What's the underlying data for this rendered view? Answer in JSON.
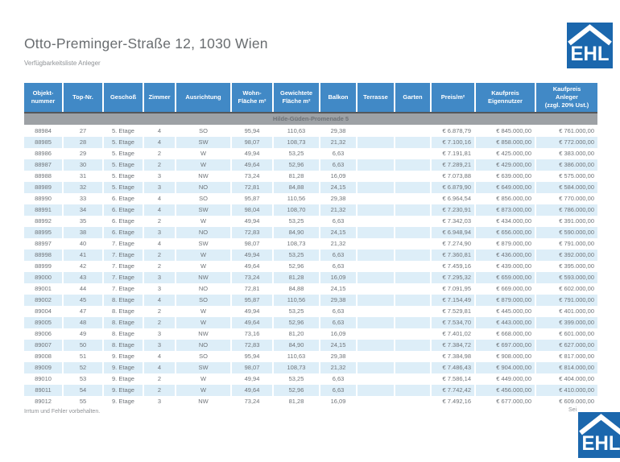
{
  "header": {
    "title": "Otto-Preminger-Straße 12, 1030 Wien",
    "subtitle": "Verfügbarkeitsliste Anleger"
  },
  "logo": {
    "text": "EHL",
    "color": "#1b67ad"
  },
  "colors": {
    "table_header_blue": "#4189c6",
    "row_alt_blue": "#ddeef8",
    "group_row_gray": "#9da1a5",
    "brand_blue": "#1b67ad"
  },
  "table": {
    "columns": [
      "Objekt-\nnummer",
      "Top-Nr.",
      "Geschoß",
      "Zimmer",
      "Ausrichtung",
      "Wohn-\nFläche m²",
      "Gewichtete\nFläche m²",
      "Balkon",
      "Terrasse",
      "Garten",
      "Preis/m²",
      "Kaufpreis\nEigennutzer",
      "Kaufpreis\nAnleger\n(zzgl. 20% Ust.)"
    ],
    "column_keys": [
      "objektnummer",
      "top_nr",
      "geschoss",
      "zimmer",
      "ausrichtung",
      "wohnflaeche",
      "gewichtete_flaeche",
      "balkon",
      "terrasse",
      "garten",
      "preis_m2",
      "kaufpreis_eigennutzer",
      "kaufpreis_anleger"
    ],
    "group_title": "Hilde-Güden-Promenade 5",
    "rows": [
      [
        "88984",
        "27",
        "5. Etage",
        "4",
        "SO",
        "95,94",
        "110,63",
        "29,38",
        "",
        "",
        "€ 6.878,79",
        "€ 845.000,00",
        "€ 761.000,00"
      ],
      [
        "88985",
        "28",
        "5. Etage",
        "4",
        "SW",
        "98,07",
        "108,73",
        "21,32",
        "",
        "",
        "€ 7.100,16",
        "€ 858.000,00",
        "€ 772.000,00"
      ],
      [
        "88986",
        "29",
        "5. Etage",
        "2",
        "W",
        "49,94",
        "53,25",
        "6,63",
        "",
        "",
        "€ 7.191,81",
        "€ 425.000,00",
        "€ 383.000,00"
      ],
      [
        "88987",
        "30",
        "5. Etage",
        "2",
        "W",
        "49,64",
        "52,96",
        "6,63",
        "",
        "",
        "€ 7.289,21",
        "€ 429.000,00",
        "€ 386.000,00"
      ],
      [
        "88988",
        "31",
        "5. Etage",
        "3",
        "NW",
        "73,24",
        "81,28",
        "16,09",
        "",
        "",
        "€ 7.073,88",
        "€ 639.000,00",
        "€ 575.000,00"
      ],
      [
        "88989",
        "32",
        "5. Etage",
        "3",
        "NO",
        "72,81",
        "84,88",
        "24,15",
        "",
        "",
        "€ 6.879,90",
        "€ 649.000,00",
        "€ 584.000,00"
      ],
      [
        "88990",
        "33",
        "6. Etage",
        "4",
        "SO",
        "95,87",
        "110,56",
        "29,38",
        "",
        "",
        "€ 6.964,54",
        "€ 856.000,00",
        "€ 770.000,00"
      ],
      [
        "88991",
        "34",
        "6. Etage",
        "4",
        "SW",
        "98,04",
        "108,70",
        "21,32",
        "",
        "",
        "€ 7.230,91",
        "€ 873.000,00",
        "€ 786.000,00"
      ],
      [
        "88992",
        "35",
        "6. Etage",
        "2",
        "W",
        "49,94",
        "53,25",
        "6,63",
        "",
        "",
        "€ 7.342,03",
        "€ 434.000,00",
        "€ 391.000,00"
      ],
      [
        "88995",
        "38",
        "6. Etage",
        "3",
        "NO",
        "72,83",
        "84,90",
        "24,15",
        "",
        "",
        "€ 6.948,94",
        "€ 656.000,00",
        "€ 590.000,00"
      ],
      [
        "88997",
        "40",
        "7. Etage",
        "4",
        "SW",
        "98,07",
        "108,73",
        "21,32",
        "",
        "",
        "€ 7.274,90",
        "€ 879.000,00",
        "€ 791.000,00"
      ],
      [
        "88998",
        "41",
        "7. Etage",
        "2",
        "W",
        "49,94",
        "53,25",
        "6,63",
        "",
        "",
        "€ 7.360,81",
        "€ 436.000,00",
        "€ 392.000,00"
      ],
      [
        "88999",
        "42",
        "7. Etage",
        "2",
        "W",
        "49,64",
        "52,96",
        "6,63",
        "",
        "",
        "€ 7.459,16",
        "€ 439.000,00",
        "€ 395.000,00"
      ],
      [
        "89000",
        "43",
        "7. Etage",
        "3",
        "NW",
        "73,24",
        "81,28",
        "16,09",
        "",
        "",
        "€ 7.295,32",
        "€ 659.000,00",
        "€ 593.000,00"
      ],
      [
        "89001",
        "44",
        "7. Etage",
        "3",
        "NO",
        "72,81",
        "84,88",
        "24,15",
        "",
        "",
        "€ 7.091,95",
        "€ 669.000,00",
        "€ 602.000,00"
      ],
      [
        "89002",
        "45",
        "8. Etage",
        "4",
        "SO",
        "95,87",
        "110,56",
        "29,38",
        "",
        "",
        "€ 7.154,49",
        "€ 879.000,00",
        "€ 791.000,00"
      ],
      [
        "89004",
        "47",
        "8. Etage",
        "2",
        "W",
        "49,94",
        "53,25",
        "6,63",
        "",
        "",
        "€ 7.529,81",
        "€ 445.000,00",
        "€ 401.000,00"
      ],
      [
        "89005",
        "48",
        "8. Etage",
        "2",
        "W",
        "49,64",
        "52,96",
        "6,63",
        "",
        "",
        "€ 7.534,70",
        "€ 443.000,00",
        "€ 399.000,00"
      ],
      [
        "89006",
        "49",
        "8. Etage",
        "3",
        "NW",
        "73,16",
        "81,20",
        "16,09",
        "",
        "",
        "€ 7.401,02",
        "€ 668.000,00",
        "€ 601.000,00"
      ],
      [
        "89007",
        "50",
        "8. Etage",
        "3",
        "NO",
        "72,83",
        "84,90",
        "24,15",
        "",
        "",
        "€ 7.384,72",
        "€ 697.000,00",
        "€ 627.000,00"
      ],
      [
        "89008",
        "51",
        "9. Etage",
        "4",
        "SO",
        "95,94",
        "110,63",
        "29,38",
        "",
        "",
        "€ 7.384,98",
        "€ 908.000,00",
        "€ 817.000,00"
      ],
      [
        "89009",
        "52",
        "9. Etage",
        "4",
        "SW",
        "98,07",
        "108,73",
        "21,32",
        "",
        "",
        "€ 7.486,43",
        "€ 904.000,00",
        "€ 814.000,00"
      ],
      [
        "89010",
        "53",
        "9. Etage",
        "2",
        "W",
        "49,94",
        "53,25",
        "6,63",
        "",
        "",
        "€ 7.586,14",
        "€ 449.000,00",
        "€ 404.000,00"
      ],
      [
        "89011",
        "54",
        "9. Etage",
        "2",
        "W",
        "49,64",
        "52,96",
        "6,63",
        "",
        "",
        "€ 7.742,42",
        "€ 456.000,00",
        "€ 410.000,00"
      ],
      [
        "89012",
        "55",
        "9. Etage",
        "3",
        "NW",
        "73,24",
        "81,28",
        "16,09",
        "",
        "",
        "€ 7.492,16",
        "€ 677.000,00",
        "€ 609.000,00"
      ]
    ]
  },
  "footer": {
    "disclaimer": "Irrtum und Fehler vorbehalten.",
    "page": "Sei"
  }
}
